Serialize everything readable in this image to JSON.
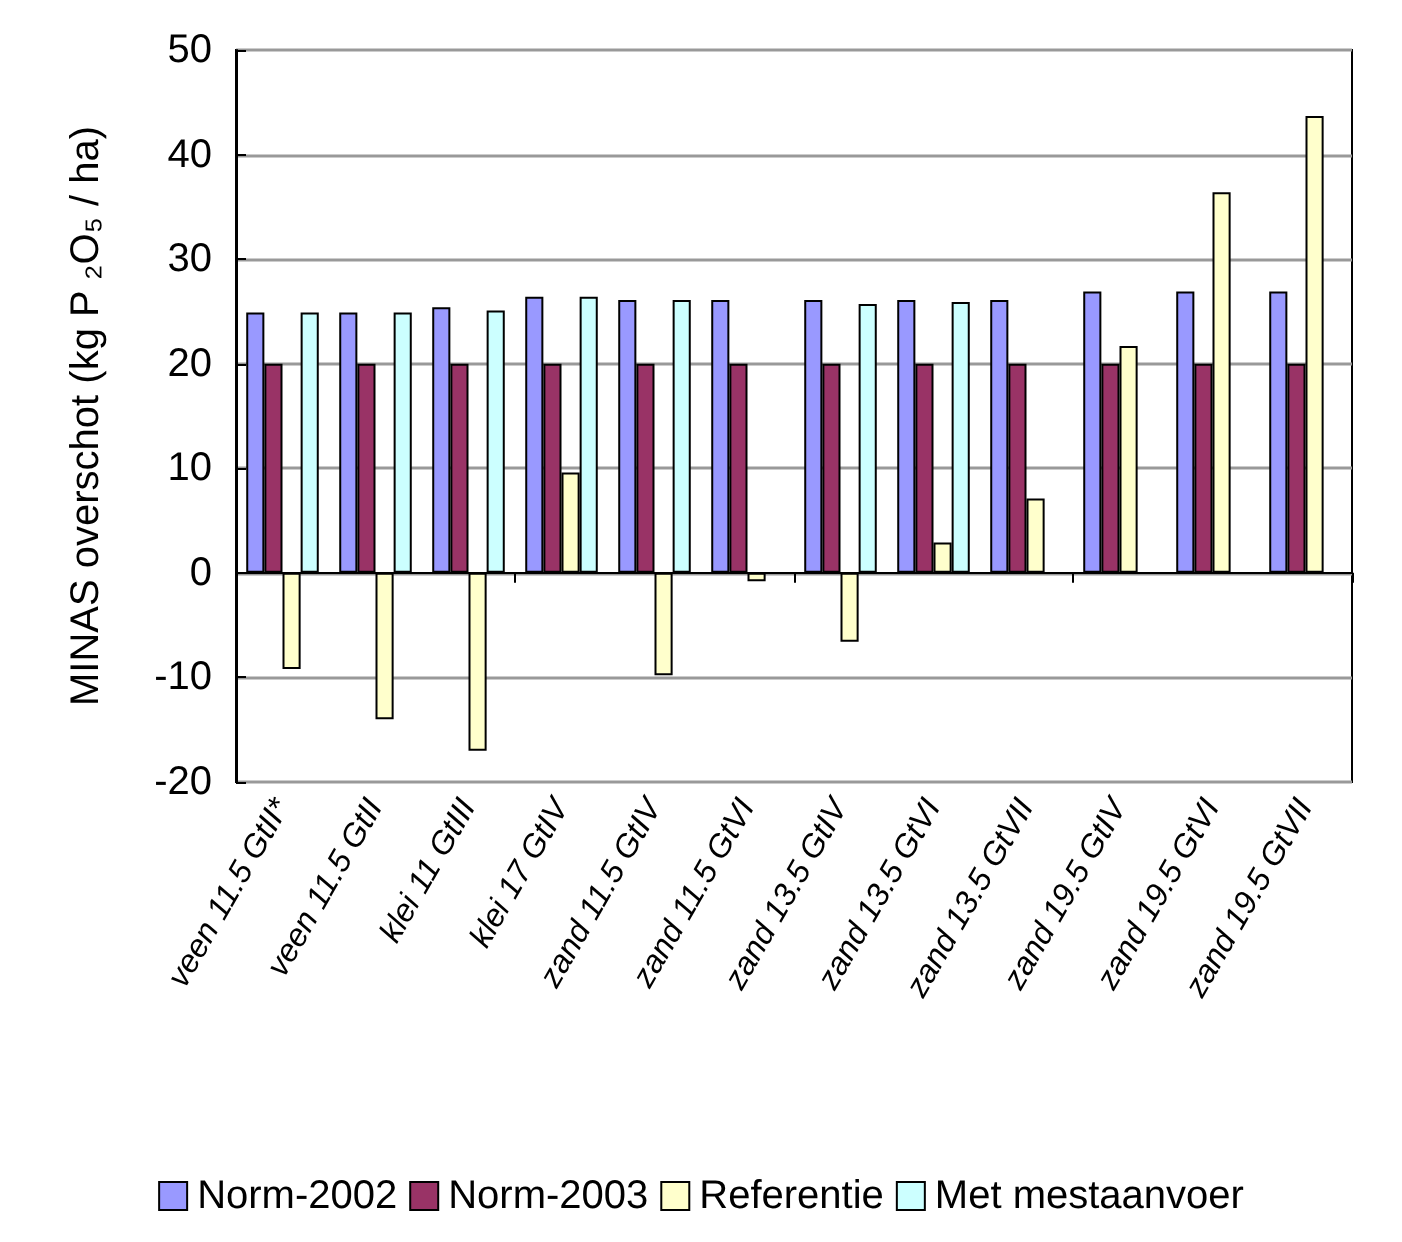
{
  "chart_data": {
    "type": "bar",
    "ylabel": "MINAS overschot (kg P ₂O₅ / ha)",
    "categories": [
      "veen 11.5 GtII*",
      "veen 11.5 GtII",
      "klei 11 GtIII",
      "klei 17 GtIV",
      "zand 11.5 GtIV",
      "zand 11.5 GtVI",
      "zand 13.5 GtIV",
      "zand 13.5 GtVI",
      "zand 13.5 GtVII",
      "zand 19.5 GtIV",
      "zand 19.5 GtVI",
      "zand 19.5 GtVII"
    ],
    "series": [
      {
        "name": "Norm-2002",
        "color": "#9999ff",
        "values": [
          24.9,
          24.9,
          25.4,
          26.4,
          26.1,
          26.1,
          26.1,
          26.1,
          26.1,
          26.9,
          26.9,
          26.9
        ]
      },
      {
        "name": "Norm-2003",
        "color": "#993366",
        "values": [
          20,
          20,
          20,
          20,
          20,
          20,
          20,
          20,
          20,
          20,
          20,
          20
        ]
      },
      {
        "name": "Referentie",
        "color": "#ffffcc",
        "values": [
          -9.2,
          -14,
          -17,
          9.6,
          -9.8,
          -0.8,
          -6.6,
          2.9,
          7.1,
          21.7,
          36.4,
          43.7
        ]
      },
      {
        "name": "Met mestaanvoer",
        "color": "#ccffff",
        "values": [
          24.9,
          24.9,
          25.1,
          26.4,
          26.1,
          null,
          25.7,
          25.9,
          null,
          null,
          null,
          null
        ]
      }
    ],
    "ylim": [
      -20,
      50
    ],
    "yticks": [
      -20,
      -10,
      0,
      10,
      20,
      30,
      40,
      50
    ],
    "grid": "y",
    "legend": "bottom"
  }
}
